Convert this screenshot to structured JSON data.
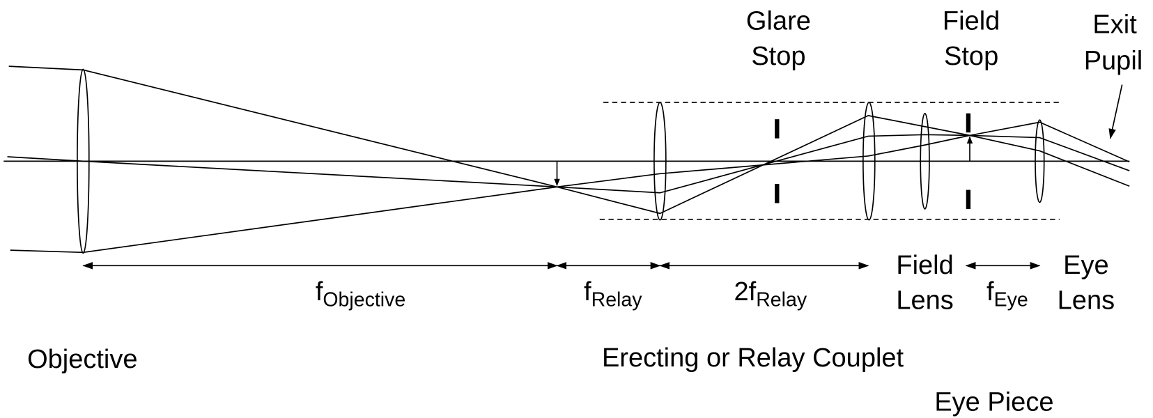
{
  "labels": {
    "glare_stop": [
      "Glare",
      "Stop"
    ],
    "field_stop": [
      "Field",
      "Stop"
    ],
    "exit_pupil": [
      "Exit",
      "Pupil"
    ],
    "f_objective": {
      "main": "f",
      "sub": "Objective"
    },
    "f_relay": {
      "main": "f",
      "sub": "Relay"
    },
    "two_f_relay": {
      "main": "2f",
      "sub": "Relay"
    },
    "field_lens": [
      "Field",
      "Lens"
    ],
    "f_eye": {
      "main": "f",
      "sub": "Eye"
    },
    "eye_lens": [
      "Eye",
      "Lens"
    ],
    "objective": "Objective",
    "relay_couplet": "Erecting or Relay Couplet",
    "eye_piece": "Eye Piece"
  }
}
